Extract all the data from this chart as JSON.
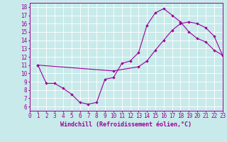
{
  "xlabel": "Windchill (Refroidissement éolien,°C)",
  "bg_color": "#c8eaea",
  "grid_color": "#ffffff",
  "line_color": "#990099",
  "xlim": [
    0,
    23
  ],
  "ylim": [
    5.5,
    18.5
  ],
  "xticks": [
    0,
    1,
    2,
    3,
    4,
    5,
    6,
    7,
    8,
    9,
    10,
    11,
    12,
    13,
    14,
    15,
    16,
    17,
    18,
    19,
    20,
    21,
    22,
    23
  ],
  "yticks": [
    6,
    7,
    8,
    9,
    10,
    11,
    12,
    13,
    14,
    15,
    16,
    17,
    18
  ],
  "curve1": [
    [
      1,
      11.0
    ],
    [
      2,
      8.8
    ],
    [
      3,
      8.8
    ],
    [
      4,
      8.2
    ],
    [
      5,
      7.5
    ],
    [
      6,
      6.5
    ],
    [
      7,
      6.3
    ],
    [
      8,
      6.5
    ],
    [
      9,
      9.3
    ],
    [
      10,
      9.5
    ],
    [
      11,
      11.2
    ],
    [
      12,
      11.5
    ],
    [
      13,
      12.5
    ],
    [
      14,
      15.8
    ],
    [
      15,
      17.3
    ],
    [
      16,
      17.8
    ],
    [
      17,
      17.0
    ],
    [
      18,
      16.2
    ],
    [
      19,
      15.0
    ],
    [
      20,
      14.2
    ],
    [
      21,
      13.8
    ],
    [
      22,
      12.8
    ],
    [
      23,
      12.2
    ]
  ],
  "curve2": [
    [
      1,
      11.0
    ],
    [
      10,
      10.3
    ],
    [
      13,
      10.8
    ],
    [
      14,
      11.5
    ],
    [
      15,
      12.8
    ],
    [
      16,
      14.0
    ],
    [
      17,
      15.2
    ],
    [
      18,
      16.0
    ],
    [
      19,
      16.2
    ],
    [
      20,
      16.0
    ],
    [
      21,
      15.5
    ],
    [
      22,
      14.5
    ],
    [
      23,
      12.2
    ]
  ],
  "axis_fontsize": 6,
  "tick_fontsize": 5.5
}
